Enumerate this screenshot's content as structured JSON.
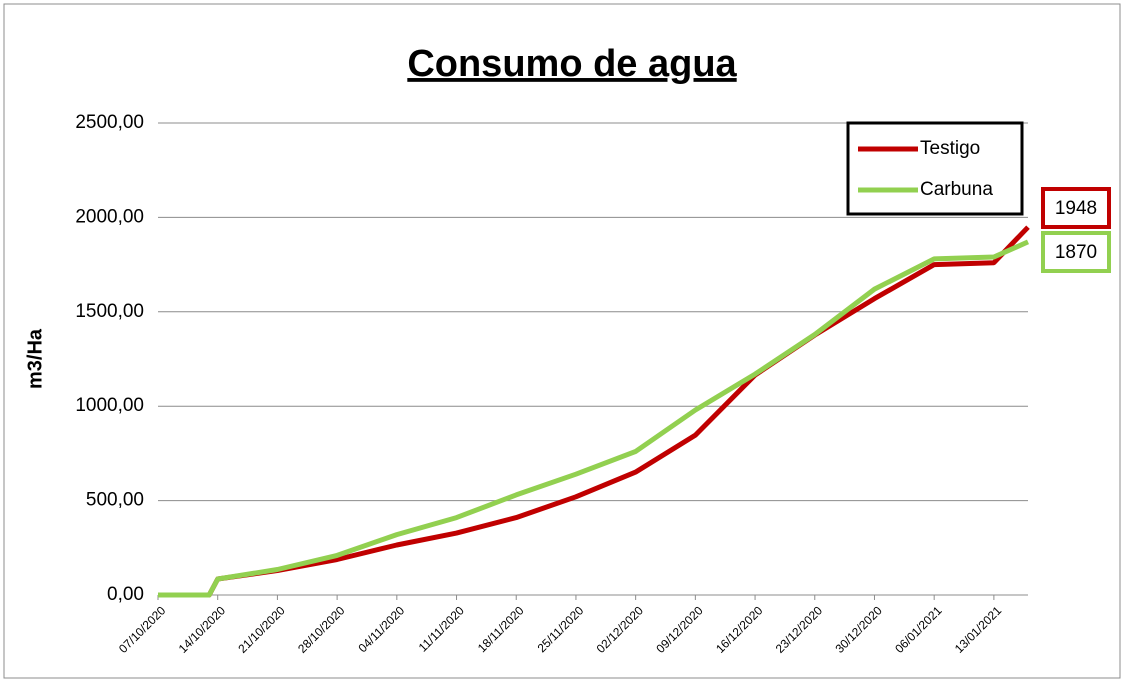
{
  "chart_data": {
    "type": "line",
    "title": "Consumo de agua",
    "y_label": "m3/Ha",
    "x": [
      "07/10/2020",
      "13/10/2020",
      "14/10/2020",
      "21/10/2020",
      "28/10/2020",
      "04/11/2020",
      "11/11/2020",
      "18/11/2020",
      "25/11/2020",
      "02/12/2020",
      "09/12/2020",
      "16/12/2020",
      "23/12/2020",
      "30/12/2020",
      "06/01/2021",
      "13/01/2021",
      "17/01/2021"
    ],
    "series": [
      {
        "name": "Testigo",
        "color": "#c00000",
        "values": [
          0,
          0,
          85,
          130,
          188,
          265,
          328,
          410,
          520,
          651,
          847,
          1165,
          1377,
          1570,
          1750,
          1760,
          1948
        ]
      },
      {
        "name": "Carbuna",
        "color": "#92d050",
        "values": [
          0,
          0,
          85,
          135,
          210,
          320,
          410,
          530,
          640,
          760,
          980,
          1170,
          1380,
          1620,
          1780,
          1790,
          1870
        ]
      }
    ],
    "xlim": [
      "07/10/2020",
      "17/01/2021"
    ],
    "xticks": [
      "07/10/2020",
      "14/10/2020",
      "21/10/2020",
      "28/10/2020",
      "04/11/2020",
      "11/11/2020",
      "18/11/2020",
      "25/11/2020",
      "02/12/2020",
      "09/12/2020",
      "16/12/2020",
      "23/12/2020",
      "30/12/2020",
      "06/01/2021",
      "13/01/2021"
    ],
    "ylim": [
      0,
      2500
    ],
    "yticks": [
      {
        "value": 0,
        "label": "0,00"
      },
      {
        "value": 500,
        "label": "500,00"
      },
      {
        "value": 1000,
        "label": "1000,00"
      },
      {
        "value": 1500,
        "label": "1500,00"
      },
      {
        "value": 2000,
        "label": "2000,00"
      },
      {
        "value": 2500,
        "label": "2500,00"
      }
    ],
    "grid": true,
    "legend": "upper right"
  }
}
